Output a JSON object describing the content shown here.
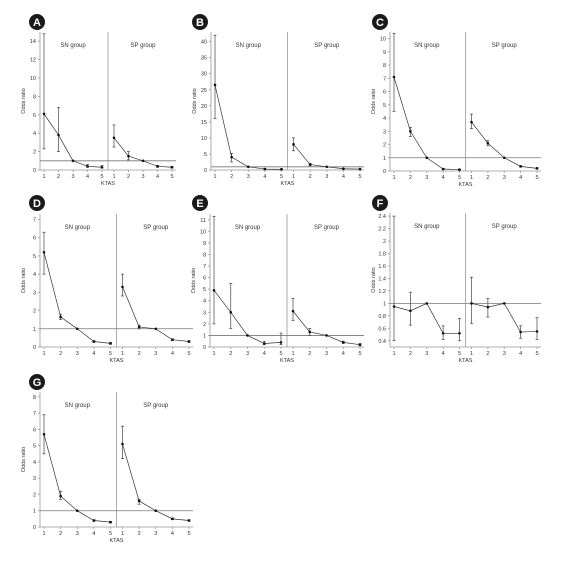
{
  "chart_data": [
    {
      "type": "line",
      "panel_label": "A",
      "ylabel": "Odds ratio",
      "xlabel": "KTAS",
      "x": [
        1,
        2,
        3,
        4,
        5
      ],
      "yticks": [
        0,
        2,
        4,
        6,
        8,
        10,
        12,
        14
      ],
      "ylim": [
        0,
        15
      ],
      "reference_line": 1,
      "series": [
        {
          "name": "SN group",
          "values": [
            6.1,
            3.8,
            1.0,
            0.4,
            0.3
          ],
          "lower": [
            2.3,
            2.0,
            1.0,
            0.3,
            0.2
          ],
          "upper": [
            14.8,
            6.8,
            1.0,
            0.6,
            0.5
          ]
        },
        {
          "name": "SP group",
          "values": [
            3.5,
            1.5,
            1.0,
            0.4,
            0.3
          ],
          "lower": [
            2.5,
            1.1,
            1.0,
            0.3,
            0.2
          ],
          "upper": [
            4.9,
            2.0,
            1.0,
            0.5,
            0.4
          ]
        }
      ]
    },
    {
      "type": "line",
      "panel_label": "B",
      "ylabel": "Odds ratio",
      "xlabel": "KTAS",
      "x": [
        1,
        2,
        3,
        4,
        5
      ],
      "yticks": [
        0,
        5,
        10,
        15,
        20,
        25,
        30,
        35,
        40
      ],
      "ylim": [
        0,
        43
      ],
      "reference_line": 1,
      "series": [
        {
          "name": "SN group",
          "values": [
            26.5,
            4.0,
            1.0,
            0.3,
            0.2
          ],
          "lower": [
            16.0,
            2.5,
            1.0,
            0.2,
            0.1
          ],
          "upper": [
            42.0,
            5.2,
            1.0,
            0.5,
            0.4
          ]
        },
        {
          "name": "SP group",
          "values": [
            8.0,
            1.7,
            1.0,
            0.4,
            0.3
          ],
          "lower": [
            6.0,
            1.3,
            1.0,
            0.3,
            0.2
          ],
          "upper": [
            10.0,
            2.1,
            1.0,
            0.5,
            0.4
          ]
        }
      ]
    },
    {
      "type": "line",
      "panel_label": "C",
      "ylabel": "Odds ratio",
      "xlabel": "KTAS",
      "x": [
        1,
        2,
        3,
        4,
        5
      ],
      "yticks": [
        0,
        1,
        2,
        3,
        4,
        5,
        6,
        7,
        8,
        9,
        10
      ],
      "ylim": [
        0,
        10.5
      ],
      "reference_line": 1,
      "series": [
        {
          "name": "SN group",
          "values": [
            7.1,
            3.0,
            1.0,
            0.15,
            0.1
          ],
          "lower": [
            4.5,
            2.6,
            1.0,
            0.1,
            0.05
          ],
          "upper": [
            10.4,
            3.3,
            1.0,
            0.2,
            0.15
          ]
        },
        {
          "name": "SP group",
          "values": [
            3.7,
            2.1,
            1.0,
            0.35,
            0.2
          ],
          "lower": [
            3.2,
            1.9,
            1.0,
            0.3,
            0.15
          ],
          "upper": [
            4.3,
            2.3,
            1.0,
            0.4,
            0.25
          ]
        }
      ]
    },
    {
      "type": "line",
      "panel_label": "D",
      "ylabel": "Odds ratio",
      "xlabel": "KTAS",
      "x": [
        1,
        2,
        3,
        4,
        5
      ],
      "yticks": [
        0,
        1,
        2,
        3,
        4,
        5,
        6,
        7
      ],
      "ylim": [
        0,
        7.3
      ],
      "reference_line": 1,
      "series": [
        {
          "name": "SN group",
          "values": [
            5.2,
            1.65,
            1.0,
            0.3,
            0.2
          ],
          "lower": [
            4.0,
            1.5,
            1.0,
            0.25,
            0.15
          ],
          "upper": [
            6.3,
            1.8,
            1.0,
            0.35,
            0.25
          ]
        },
        {
          "name": "SP group",
          "values": [
            3.3,
            1.1,
            1.0,
            0.4,
            0.3
          ],
          "lower": [
            2.8,
            1.0,
            1.0,
            0.35,
            0.25
          ],
          "upper": [
            4.0,
            1.2,
            1.0,
            0.45,
            0.35
          ]
        }
      ]
    },
    {
      "type": "line",
      "panel_label": "E",
      "ylabel": "Odds ratio",
      "xlabel": "KTAS",
      "x": [
        1,
        2,
        3,
        4,
        5
      ],
      "yticks": [
        0,
        1,
        2,
        3,
        4,
        5,
        6,
        7,
        8,
        9,
        10,
        11
      ],
      "ylim": [
        0,
        11.5
      ],
      "reference_line": 1,
      "series": [
        {
          "name": "SN group",
          "values": [
            4.9,
            3.0,
            1.0,
            0.3,
            0.4
          ],
          "lower": [
            2.0,
            1.6,
            1.0,
            0.2,
            0.2
          ],
          "upper": [
            11.3,
            5.5,
            1.0,
            0.5,
            1.2
          ]
        },
        {
          "name": "SP group",
          "values": [
            3.1,
            1.3,
            1.0,
            0.4,
            0.2
          ],
          "lower": [
            2.3,
            1.0,
            1.0,
            0.3,
            0.1
          ],
          "upper": [
            4.2,
            1.6,
            1.0,
            0.5,
            0.3
          ]
        }
      ]
    },
    {
      "type": "line",
      "panel_label": "F",
      "ylabel": "Odds ratio",
      "xlabel": "KTAS",
      "x": [
        1,
        2,
        3,
        4,
        5
      ],
      "yticks": [
        0.4,
        0.6,
        0.8,
        1.0,
        1.2,
        1.4,
        1.6,
        1.8,
        2.0,
        2.2,
        2.4
      ],
      "ylim": [
        0.3,
        2.45
      ],
      "reference_line": 1,
      "series": [
        {
          "name": "SN group",
          "values": [
            0.95,
            0.88,
            1.0,
            0.52,
            0.52
          ],
          "lower": [
            0.4,
            0.65,
            1.0,
            0.42,
            0.4
          ],
          "upper": [
            2.4,
            1.18,
            1.0,
            0.64,
            0.76
          ]
        },
        {
          "name": "SP group",
          "values": [
            1.0,
            0.94,
            1.0,
            0.54,
            0.55
          ],
          "lower": [
            0.68,
            0.78,
            1.0,
            0.44,
            0.42
          ],
          "upper": [
            1.42,
            1.08,
            1.0,
            0.64,
            0.77
          ]
        }
      ]
    },
    {
      "type": "line",
      "panel_label": "G",
      "ylabel": "Odds ratio",
      "xlabel": "KTAS",
      "x": [
        1,
        2,
        3,
        4,
        5
      ],
      "yticks": [
        0,
        1,
        2,
        3,
        4,
        5,
        6,
        7,
        8
      ],
      "ylim": [
        0,
        8.3
      ],
      "reference_line": 1,
      "series": [
        {
          "name": "SN group",
          "values": [
            5.7,
            1.9,
            1.0,
            0.4,
            0.3
          ],
          "lower": [
            4.5,
            1.7,
            1.0,
            0.35,
            0.25
          ],
          "upper": [
            6.9,
            2.2,
            1.0,
            0.45,
            0.35
          ]
        },
        {
          "name": "SP group",
          "values": [
            5.1,
            1.6,
            1.0,
            0.5,
            0.4
          ],
          "lower": [
            4.2,
            1.4,
            1.0,
            0.45,
            0.35
          ],
          "upper": [
            6.2,
            1.7,
            1.0,
            0.55,
            0.45
          ]
        }
      ]
    }
  ]
}
